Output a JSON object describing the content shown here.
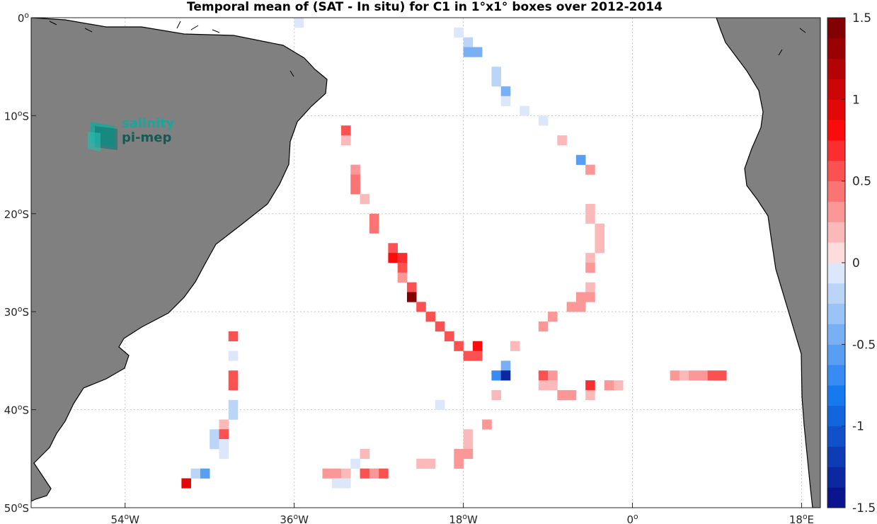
{
  "chart_data": {
    "type": "heatmap",
    "title": "Temporal mean of (SAT - In situ) for C1 in 1°x1° boxes over 2012-2014",
    "xlim": [
      -64,
      20
    ],
    "ylim": [
      -50,
      0
    ],
    "x_ticks": [
      {
        "value": -54,
        "label": "54",
        "suffix": "W"
      },
      {
        "value": -36,
        "label": "36",
        "suffix": "W"
      },
      {
        "value": -18,
        "label": "18",
        "suffix": "W"
      },
      {
        "value": 0,
        "label": "0",
        "suffix": ""
      },
      {
        "value": 18,
        "label": "18",
        "suffix": "E"
      }
    ],
    "y_ticks": [
      {
        "value": 0,
        "label": "0",
        "suffix": ""
      },
      {
        "value": -10,
        "label": "10",
        "suffix": "S"
      },
      {
        "value": -20,
        "label": "20",
        "suffix": "S"
      },
      {
        "value": -30,
        "label": "30",
        "suffix": "S"
      },
      {
        "value": -40,
        "label": "40",
        "suffix": "S"
      },
      {
        "value": -50,
        "label": "50",
        "suffix": "S"
      }
    ],
    "grid": true,
    "colorbar": {
      "min": -1.5,
      "max": 1.5,
      "levels": 24,
      "position": "right",
      "ticks": [
        "1.5",
        "1",
        "0.5",
        "0",
        "-0.5",
        "-1",
        "-1.5"
      ],
      "tick_values": [
        1.5,
        1,
        0.5,
        0,
        -0.5,
        -1,
        -1.5
      ]
    },
    "cells": [
      {
        "lon": -35.5,
        "lat": -0.5,
        "v": -0.1
      },
      {
        "lon": -18.5,
        "lat": -1.5,
        "v": -0.1
      },
      {
        "lon": -17.5,
        "lat": -2.5,
        "v": -0.25
      },
      {
        "lon": -17.5,
        "lat": -3.5,
        "v": -0.4
      },
      {
        "lon": -16.5,
        "lat": -3.5,
        "v": -0.4
      },
      {
        "lon": -14.5,
        "lat": -5.5,
        "v": -0.25
      },
      {
        "lon": -14.5,
        "lat": -6.5,
        "v": -0.25
      },
      {
        "lon": -13.5,
        "lat": -7.5,
        "v": -0.4
      },
      {
        "lon": -13.5,
        "lat": -8.5,
        "v": -0.1
      },
      {
        "lon": -11.5,
        "lat": -9.5,
        "v": -0.1
      },
      {
        "lon": -9.5,
        "lat": -10.5,
        "v": -0.1
      },
      {
        "lon": -30.5,
        "lat": -11.5,
        "v": 0.6
      },
      {
        "lon": -30.5,
        "lat": -12.5,
        "v": 0.15
      },
      {
        "lon": -7.5,
        "lat": -12.5,
        "v": 0.15
      },
      {
        "lon": -5.5,
        "lat": -14.5,
        "v": -0.6
      },
      {
        "lon": -4.5,
        "lat": -15.5,
        "v": 0.25
      },
      {
        "lon": -29.5,
        "lat": -15.5,
        "v": 0.25
      },
      {
        "lon": -29.5,
        "lat": -16.5,
        "v": 0.4
      },
      {
        "lon": -29.5,
        "lat": -17.5,
        "v": 0.4
      },
      {
        "lon": -28.5,
        "lat": -18.5,
        "v": 0.15
      },
      {
        "lon": -4.5,
        "lat": -19.5,
        "v": 0.15
      },
      {
        "lon": -4.5,
        "lat": -20.5,
        "v": 0.15
      },
      {
        "lon": -27.5,
        "lat": -20.5,
        "v": 0.4
      },
      {
        "lon": -27.5,
        "lat": -21.5,
        "v": 0.4
      },
      {
        "lon": -3.5,
        "lat": -21.5,
        "v": 0.15
      },
      {
        "lon": -3.5,
        "lat": -22.5,
        "v": 0.15
      },
      {
        "lon": -3.5,
        "lat": -23.5,
        "v": 0.15
      },
      {
        "lon": -25.5,
        "lat": -23.5,
        "v": 0.5
      },
      {
        "lon": -25.5,
        "lat": -24.5,
        "v": 0.8
      },
      {
        "lon": -24.5,
        "lat": -24.5,
        "v": 0.7
      },
      {
        "lon": -4.5,
        "lat": -24.5,
        "v": 0.15
      },
      {
        "lon": -24.5,
        "lat": -25.5,
        "v": 0.5
      },
      {
        "lon": -4.5,
        "lat": -25.5,
        "v": 0.25
      },
      {
        "lon": -24.5,
        "lat": -26.5,
        "v": 0.25
      },
      {
        "lon": -23.5,
        "lat": -27.5,
        "v": 0.6
      },
      {
        "lon": -4.5,
        "lat": -27.5,
        "v": 0.15
      },
      {
        "lon": -23.5,
        "lat": -28.5,
        "v": 1.4
      },
      {
        "lon": -5.5,
        "lat": -28.5,
        "v": 0.25
      },
      {
        "lon": -4.5,
        "lat": -28.5,
        "v": 0.3
      },
      {
        "lon": -22.5,
        "lat": -29.5,
        "v": 0.6
      },
      {
        "lon": -6.5,
        "lat": -29.5,
        "v": 0.25
      },
      {
        "lon": -5.5,
        "lat": -29.5,
        "v": 0.3
      },
      {
        "lon": -21.5,
        "lat": -30.5,
        "v": 0.6
      },
      {
        "lon": -8.5,
        "lat": -30.5,
        "v": 0.3
      },
      {
        "lon": -20.5,
        "lat": -31.5,
        "v": 0.6
      },
      {
        "lon": -9.5,
        "lat": -31.5,
        "v": 0.25
      },
      {
        "lon": -42.5,
        "lat": -32.5,
        "v": 0.6
      },
      {
        "lon": -19.5,
        "lat": -32.5,
        "v": 0.6
      },
      {
        "lon": -18.5,
        "lat": -33.5,
        "v": 0.6
      },
      {
        "lon": -16.5,
        "lat": -33.5,
        "v": 0.8
      },
      {
        "lon": -12.5,
        "lat": -33.5,
        "v": 0.15
      },
      {
        "lon": -17.5,
        "lat": -34.5,
        "v": 0.5
      },
      {
        "lon": -16.5,
        "lat": -34.5,
        "v": 0.6
      },
      {
        "lon": -42.5,
        "lat": -34.5,
        "v": -0.1
      },
      {
        "lon": -13.5,
        "lat": -35.5,
        "v": -0.4
      },
      {
        "lon": -14.5,
        "lat": -36.5,
        "v": -0.7
      },
      {
        "lon": -13.5,
        "lat": -36.5,
        "v": -1.35
      },
      {
        "lon": -42.5,
        "lat": -36.5,
        "v": 0.5
      },
      {
        "lon": -9.5,
        "lat": -36.5,
        "v": 0.5
      },
      {
        "lon": -8.5,
        "lat": -36.5,
        "v": 0.25
      },
      {
        "lon": 4.5,
        "lat": -36.5,
        "v": 0.3
      },
      {
        "lon": 5.5,
        "lat": -36.5,
        "v": 0.15
      },
      {
        "lon": 6.5,
        "lat": -36.5,
        "v": 0.3
      },
      {
        "lon": 7.5,
        "lat": -36.5,
        "v": 0.25
      },
      {
        "lon": 8.5,
        "lat": -36.5,
        "v": 0.5
      },
      {
        "lon": 9.5,
        "lat": -36.5,
        "v": 0.6
      },
      {
        "lon": -42.5,
        "lat": -37.5,
        "v": 0.5
      },
      {
        "lon": -9.5,
        "lat": -37.5,
        "v": 0.15
      },
      {
        "lon": -8.5,
        "lat": -37.5,
        "v": 0.15
      },
      {
        "lon": -4.5,
        "lat": -37.5,
        "v": 0.7
      },
      {
        "lon": -2.5,
        "lat": -37.5,
        "v": 0.3
      },
      {
        "lon": -1.5,
        "lat": -37.5,
        "v": 0.15
      },
      {
        "lon": -14.5,
        "lat": -38.5,
        "v": 0.15
      },
      {
        "lon": -7.5,
        "lat": -38.5,
        "v": 0.25
      },
      {
        "lon": -6.5,
        "lat": -38.5,
        "v": 0.25
      },
      {
        "lon": -4.5,
        "lat": -38.5,
        "v": 0.15
      },
      {
        "lon": -42.5,
        "lat": -39.5,
        "v": -0.25
      },
      {
        "lon": -20.5,
        "lat": -39.5,
        "v": -0.1
      },
      {
        "lon": -42.5,
        "lat": -40.5,
        "v": -0.25
      },
      {
        "lon": -43.5,
        "lat": -41.5,
        "v": 0.15
      },
      {
        "lon": -15.5,
        "lat": -41.5,
        "v": 0.25
      },
      {
        "lon": -44.5,
        "lat": -42.5,
        "v": -0.25
      },
      {
        "lon": -43.5,
        "lat": -42.5,
        "v": 0.6
      },
      {
        "lon": -17.5,
        "lat": -42.5,
        "v": 0.15
      },
      {
        "lon": -44.5,
        "lat": -43.5,
        "v": -0.25
      },
      {
        "lon": -43.5,
        "lat": -43.5,
        "v": -0.1
      },
      {
        "lon": -17.5,
        "lat": -43.5,
        "v": 0.15
      },
      {
        "lon": -43.5,
        "lat": -44.5,
        "v": -0.1
      },
      {
        "lon": -28.5,
        "lat": -44.5,
        "v": 0.15
      },
      {
        "lon": -18.5,
        "lat": -44.5,
        "v": 0.3
      },
      {
        "lon": -17.5,
        "lat": -44.5,
        "v": 0.3
      },
      {
        "lon": -29.5,
        "lat": -45.5,
        "v": -0.1
      },
      {
        "lon": -22.5,
        "lat": -45.5,
        "v": 0.15
      },
      {
        "lon": -21.5,
        "lat": -45.5,
        "v": 0.15
      },
      {
        "lon": -18.5,
        "lat": -45.5,
        "v": 0.25
      },
      {
        "lon": -46.5,
        "lat": -46.5,
        "v": -0.25
      },
      {
        "lon": -45.5,
        "lat": -46.5,
        "v": -0.6
      },
      {
        "lon": -32.5,
        "lat": -46.5,
        "v": 0.3
      },
      {
        "lon": -31.5,
        "lat": -46.5,
        "v": 0.25
      },
      {
        "lon": -30.5,
        "lat": -46.5,
        "v": 0.15
      },
      {
        "lon": -28.5,
        "lat": -46.5,
        "v": 0.6
      },
      {
        "lon": -27.5,
        "lat": -46.5,
        "v": 0.3
      },
      {
        "lon": -26.5,
        "lat": -46.5,
        "v": 0.5
      },
      {
        "lon": -47.5,
        "lat": -47.5,
        "v": 0.9
      },
      {
        "lon": -31.5,
        "lat": -47.5,
        "v": -0.1
      },
      {
        "lon": -30.5,
        "lat": -47.5,
        "v": -0.1
      }
    ]
  },
  "logo": {
    "line1": "salinity",
    "line2": "pi-mep"
  },
  "colors": {
    "land": "#808080",
    "coast": "#000000",
    "grid": "#c8c8c8",
    "logo_teal": "#1aa69a",
    "logo_dark": "#145a55"
  }
}
